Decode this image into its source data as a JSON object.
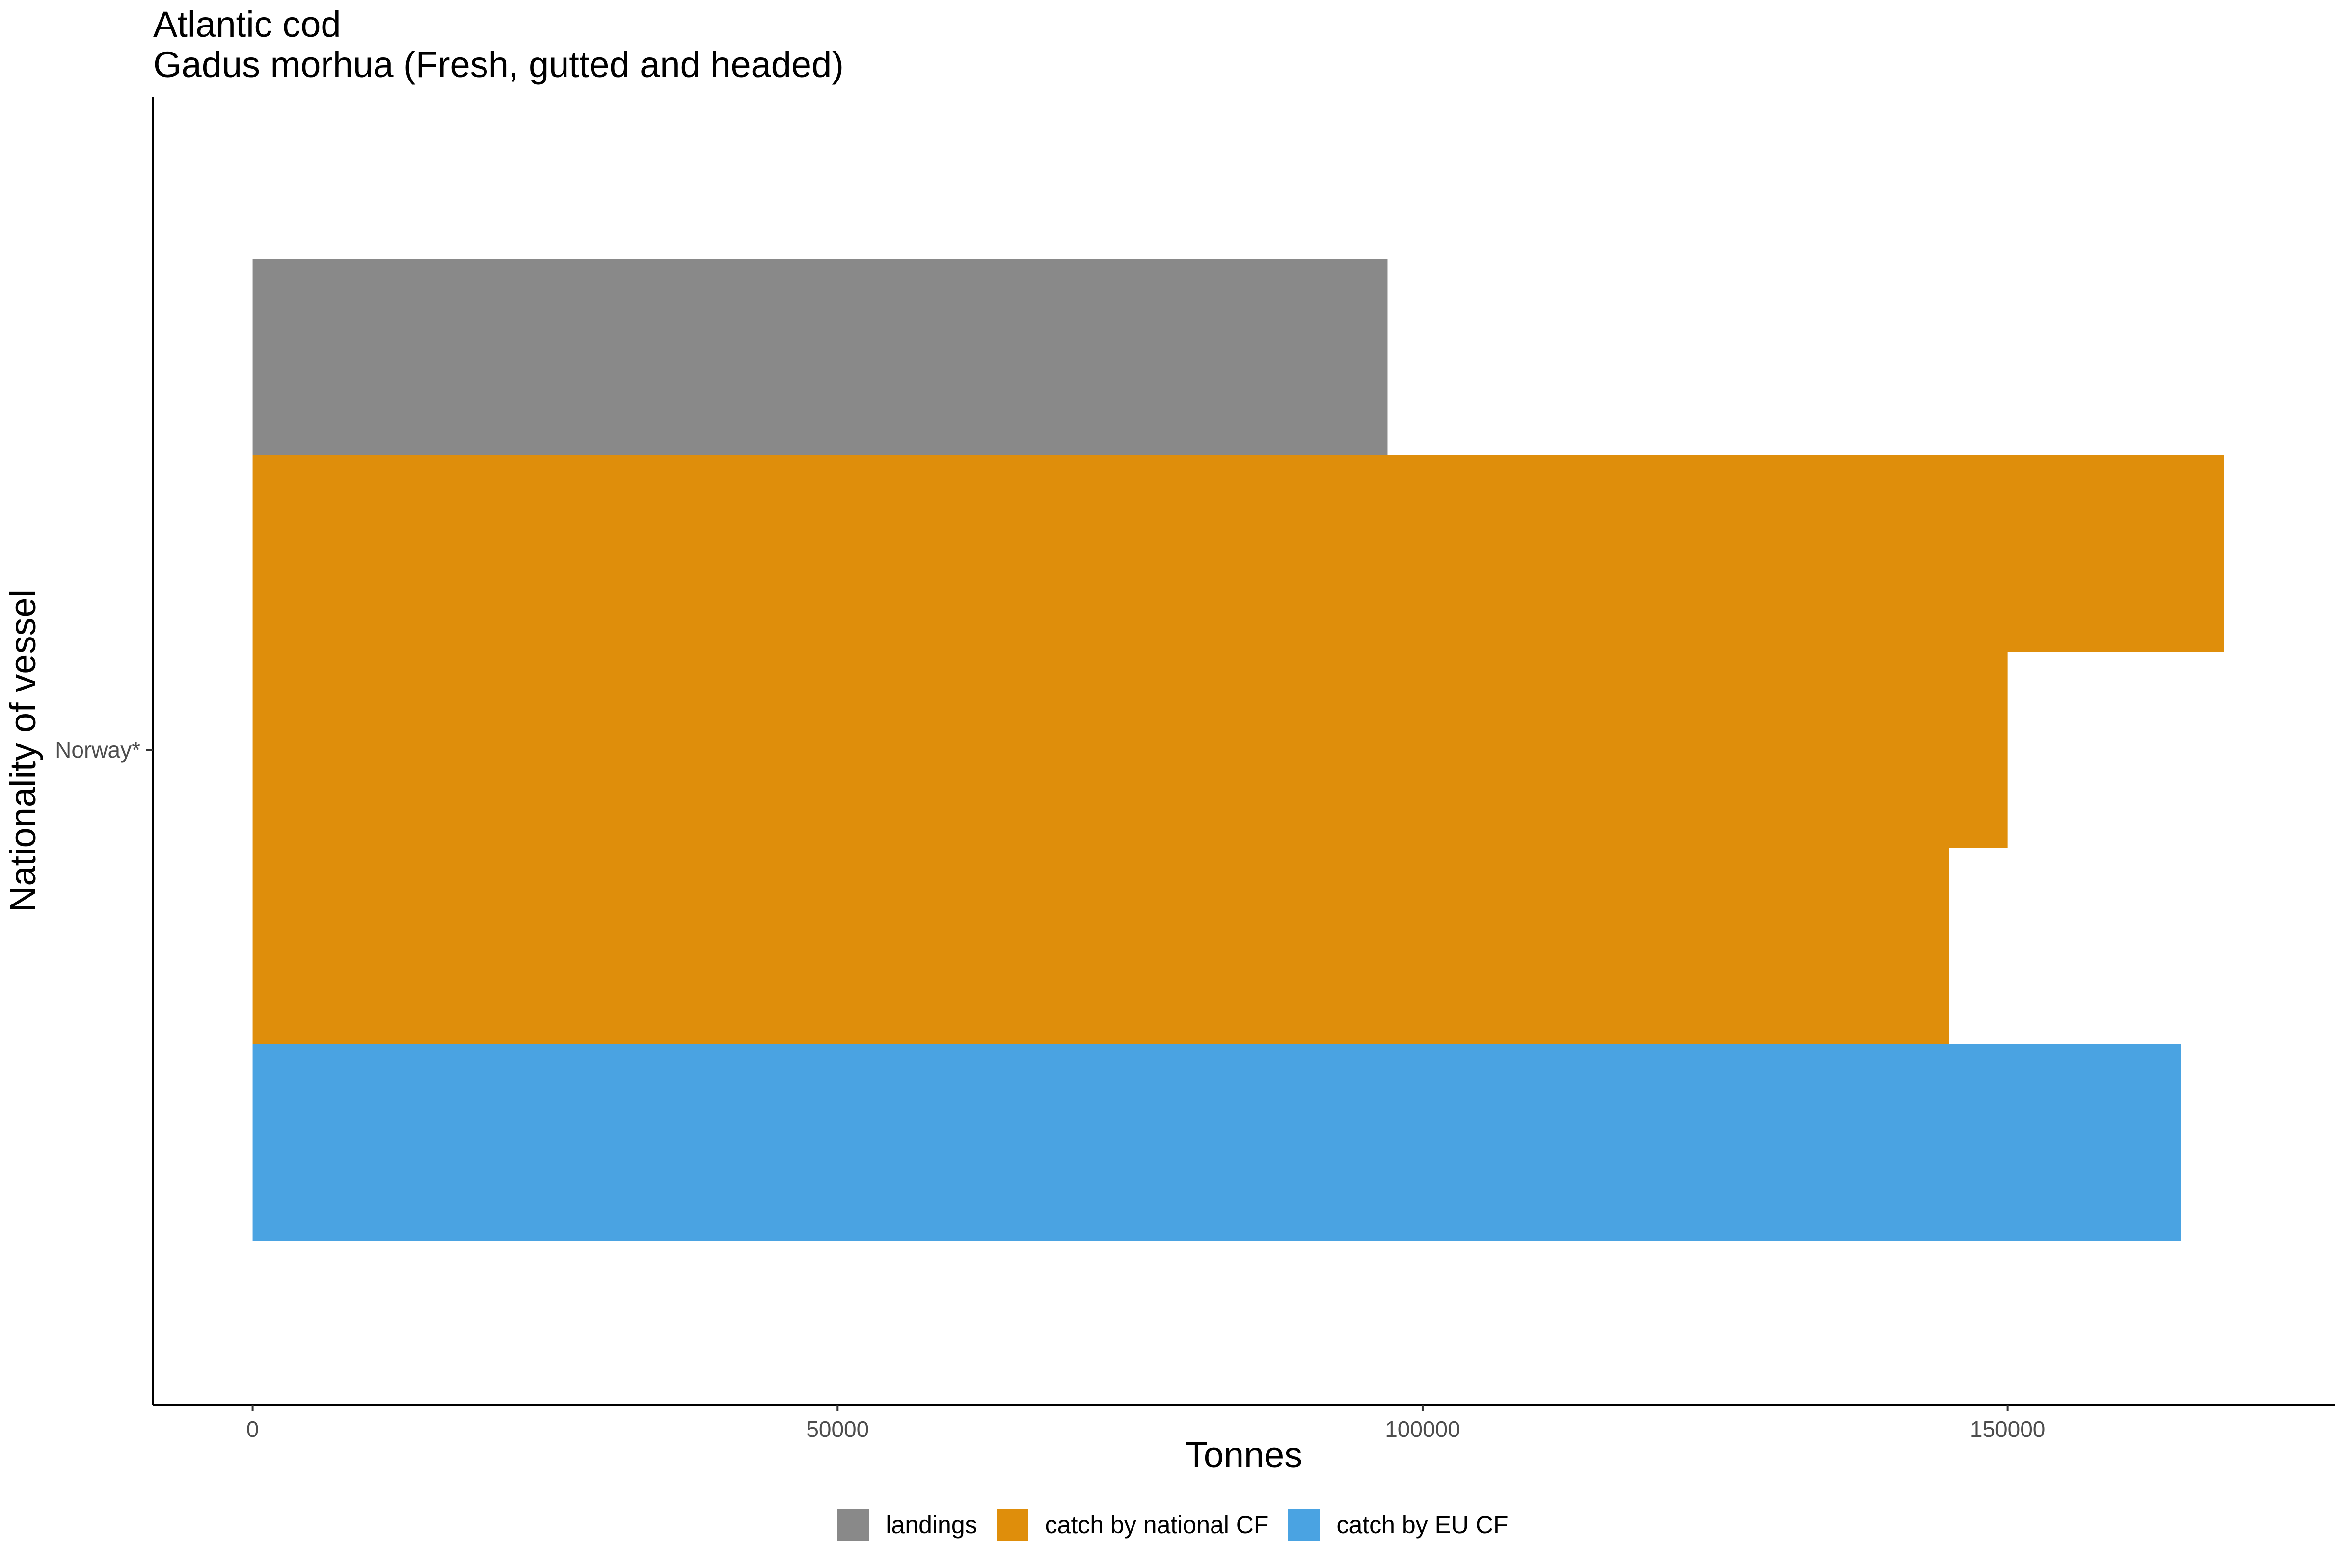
{
  "chart_data": {
    "type": "bar",
    "orientation": "horizontal",
    "title": "Atlantic cod",
    "subtitle": "Gadus morhua (Fresh, gutted and headed)",
    "xlabel": "Tonnes",
    "ylabel": "Nationality of vessel",
    "categories": [
      "Norway*"
    ],
    "xlim": [
      -8500,
      178000
    ],
    "xticks": [
      0,
      50000,
      100000,
      150000
    ],
    "xtick_labels": [
      "0",
      "50000",
      "100000",
      "150000"
    ],
    "grid": false,
    "legend_position": "bottom",
    "legend": [
      {
        "name": "landings",
        "color": "#898989"
      },
      {
        "name": "catch by national CF",
        "color": "#DF8E0B"
      },
      {
        "name": "catch by EU CF",
        "color": "#4AA3E2"
      }
    ],
    "bars": [
      {
        "category": "Norway*",
        "series": "landings",
        "value": 97000,
        "color": "#898989"
      },
      {
        "category": "Norway*",
        "series": "catch by national CF",
        "value": 168500,
        "color": "#DF8E0B"
      },
      {
        "category": "Norway*",
        "series": "catch by national CF",
        "value": 150000,
        "color": "#DF8E0B"
      },
      {
        "category": "Norway*",
        "series": "catch by national CF",
        "value": 145000,
        "color": "#DF8E0B"
      },
      {
        "category": "Norway*",
        "series": "catch by EU CF",
        "value": 164800,
        "color": "#4AA3E2"
      }
    ]
  }
}
